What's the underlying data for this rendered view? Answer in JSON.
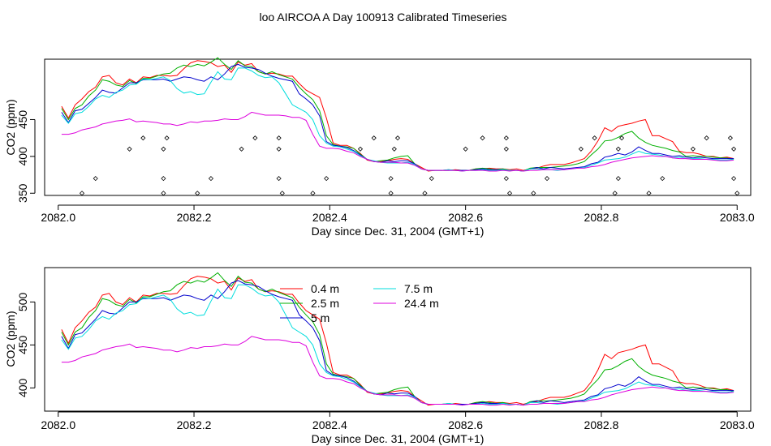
{
  "page_title": "loo AIRCOA A  Day 100913  Calibrated Timeseries",
  "colors": {
    "0.4 m": "#ff0000",
    "2.5 m": "#00b000",
    "5 m": "#0000cc",
    "7.5 m": "#00dddd",
    "24.4 m": "#dd00dd"
  },
  "chart_data": [
    {
      "type": "line",
      "title": "",
      "xlabel": "Day since Dec. 31, 2004 (GMT+1)",
      "ylabel": "CO2 (ppm)",
      "xlim": [
        2081.98,
        2083.02
      ],
      "ylim": [
        347,
        532
      ],
      "xticks": [
        "2082.0",
        "2082.2",
        "2082.4",
        "2082.6",
        "2082.8",
        "2083.0"
      ],
      "yticks": [
        "350",
        "400",
        "450"
      ],
      "grid": false,
      "legend": "none",
      "x": [
        2082.005,
        2082.015,
        2082.025,
        2082.035,
        2082.045,
        2082.055,
        2082.065,
        2082.075,
        2082.085,
        2082.095,
        2082.105,
        2082.115,
        2082.125,
        2082.135,
        2082.145,
        2082.155,
        2082.165,
        2082.175,
        2082.185,
        2082.195,
        2082.205,
        2082.215,
        2082.225,
        2082.235,
        2082.245,
        2082.255,
        2082.265,
        2082.275,
        2082.285,
        2082.295,
        2082.305,
        2082.315,
        2082.325,
        2082.335,
        2082.345,
        2082.355,
        2082.365,
        2082.375,
        2082.385,
        2082.395,
        2082.405,
        2082.415,
        2082.425,
        2082.435,
        2082.445,
        2082.455,
        2082.465,
        2082.475,
        2082.485,
        2082.495,
        2082.505,
        2082.515,
        2082.525,
        2082.535,
        2082.545,
        2082.555,
        2082.565,
        2082.575,
        2082.585,
        2082.595,
        2082.605,
        2082.615,
        2082.625,
        2082.635,
        2082.645,
        2082.655,
        2082.665,
        2082.675,
        2082.685,
        2082.695,
        2082.705,
        2082.715,
        2082.725,
        2082.735,
        2082.745,
        2082.755,
        2082.765,
        2082.775,
        2082.785,
        2082.795,
        2082.805,
        2082.815,
        2082.825,
        2082.835,
        2082.845,
        2082.855,
        2082.865,
        2082.875,
        2082.885,
        2082.895,
        2082.905,
        2082.915,
        2082.925,
        2082.935,
        2082.945,
        2082.955,
        2082.965,
        2082.975,
        2082.985,
        2082.995
      ],
      "series": [
        {
          "name": "0.4 m",
          "values": [
            468,
            452,
            470,
            478,
            488,
            494,
            508,
            510,
            500,
            497,
            505,
            500,
            508,
            507,
            510,
            510,
            509,
            510,
            519,
            527,
            530,
            529,
            527,
            522,
            524,
            514,
            528,
            524,
            526,
            515,
            512,
            513,
            512,
            509,
            509,
            499,
            490,
            485,
            480,
            452,
            418,
            415,
            415,
            411,
            404,
            395,
            393,
            393,
            394,
            396,
            397,
            396,
            390,
            385,
            380,
            381,
            381,
            381,
            382,
            381,
            381,
            383,
            383,
            384,
            383,
            383,
            382,
            383,
            381,
            383,
            384,
            387,
            389,
            389,
            389,
            391,
            394,
            397,
            407,
            421,
            439,
            434,
            441,
            443,
            445,
            448,
            450,
            428,
            428,
            424,
            420,
            407,
            405,
            405,
            403,
            400,
            400,
            398,
            399,
            397
          ]
        },
        {
          "name": "2.5 m",
          "values": [
            465,
            450,
            465,
            470,
            482,
            490,
            504,
            502,
            497,
            495,
            503,
            499,
            506,
            506,
            509,
            512,
            513,
            520,
            524,
            522,
            525,
            523,
            528,
            534,
            525,
            518,
            530,
            523,
            522,
            515,
            512,
            515,
            511,
            508,
            505,
            494,
            485,
            477,
            462,
            428,
            416,
            414,
            413,
            411,
            403,
            396,
            393,
            394,
            395,
            398,
            400,
            401,
            390,
            383,
            381,
            381,
            381,
            382,
            381,
            381,
            381,
            383,
            384,
            383,
            382,
            383,
            381,
            381,
            380,
            384,
            385,
            385,
            385,
            386,
            387,
            388,
            390,
            393,
            402,
            410,
            421,
            422,
            426,
            431,
            434,
            425,
            419,
            415,
            413,
            411,
            408,
            406,
            400,
            401,
            400,
            400,
            399,
            398,
            398,
            396
          ]
        },
        {
          "name": "5 m",
          "values": [
            460,
            446,
            462,
            464,
            472,
            480,
            490,
            487,
            486,
            493,
            500,
            500,
            504,
            504,
            504,
            505,
            502,
            505,
            508,
            507,
            504,
            502,
            508,
            504,
            512,
            522,
            525,
            521,
            520,
            518,
            513,
            509,
            506,
            504,
            502,
            485,
            478,
            470,
            455,
            420,
            415,
            414,
            412,
            408,
            402,
            396,
            393,
            392,
            394,
            393,
            394,
            394,
            390,
            383,
            381,
            381,
            381,
            381,
            381,
            381,
            381,
            382,
            383,
            382,
            382,
            382,
            381,
            381,
            380,
            383,
            385,
            383,
            385,
            384,
            383,
            384,
            385,
            386,
            390,
            392,
            399,
            401,
            404,
            402,
            406,
            413,
            408,
            404,
            404,
            402,
            400,
            401,
            399,
            398,
            399,
            398,
            397,
            397,
            397,
            397
          ]
        },
        {
          "name": "7.5 m",
          "values": [
            456,
            445,
            458,
            460,
            468,
            478,
            483,
            480,
            487,
            490,
            497,
            498,
            505,
            504,
            506,
            508,
            503,
            492,
            486,
            488,
            484,
            485,
            501,
            515,
            505,
            504,
            520,
            520,
            516,
            510,
            507,
            508,
            500,
            485,
            470,
            465,
            460,
            450,
            428,
            418,
            414,
            413,
            410,
            407,
            401,
            396,
            394,
            392,
            391,
            391,
            391,
            392,
            389,
            383,
            381,
            381,
            381,
            382,
            381,
            380,
            381,
            381,
            382,
            381,
            381,
            382,
            381,
            381,
            380,
            383,
            383,
            382,
            382,
            381,
            382,
            383,
            384,
            385,
            388,
            391,
            395,
            396,
            397,
            399,
            403,
            407,
            404,
            403,
            402,
            400,
            398,
            399,
            397,
            397,
            397,
            396,
            396,
            395,
            395,
            396
          ]
        },
        {
          "name": "24.4 m",
          "values": [
            430,
            430,
            432,
            436,
            438,
            440,
            444,
            446,
            448,
            449,
            451,
            447,
            448,
            447,
            446,
            444,
            444,
            442,
            444,
            447,
            446,
            448,
            448,
            449,
            451,
            450,
            450,
            454,
            460,
            458,
            456,
            456,
            456,
            455,
            453,
            453,
            449,
            430,
            414,
            411,
            411,
            410,
            407,
            405,
            400,
            396,
            393,
            392,
            392,
            392,
            391,
            391,
            388,
            383,
            381,
            381,
            381,
            381,
            381,
            380,
            381,
            381,
            381,
            380,
            380,
            381,
            380,
            381,
            380,
            381,
            381,
            382,
            382,
            382,
            382,
            383,
            384,
            384,
            386,
            387,
            389,
            392,
            394,
            396,
            398,
            399,
            400,
            401,
            400,
            400,
            398,
            397,
            397,
            396,
            396,
            396,
            395,
            394,
            394,
            395
          ]
        }
      ],
      "markers": {
        "shape": "open-diamond",
        "points": [
          [
            2082.035,
            350
          ],
          [
            2082.055,
            370
          ],
          [
            2082.105,
            410
          ],
          [
            2082.125,
            425
          ],
          [
            2082.155,
            350
          ],
          [
            2082.155,
            370
          ],
          [
            2082.155,
            410
          ],
          [
            2082.16,
            425
          ],
          [
            2082.205,
            350
          ],
          [
            2082.225,
            370
          ],
          [
            2082.27,
            410
          ],
          [
            2082.29,
            425
          ],
          [
            2082.325,
            370
          ],
          [
            2082.325,
            410
          ],
          [
            2082.325,
            425
          ],
          [
            2082.33,
            350
          ],
          [
            2082.375,
            350
          ],
          [
            2082.395,
            370
          ],
          [
            2082.445,
            410
          ],
          [
            2082.465,
            425
          ],
          [
            2082.49,
            350
          ],
          [
            2082.49,
            370
          ],
          [
            2082.495,
            410
          ],
          [
            2082.5,
            425
          ],
          [
            2082.54,
            350
          ],
          [
            2082.55,
            370
          ],
          [
            2082.6,
            410
          ],
          [
            2082.625,
            425
          ],
          [
            2082.66,
            370
          ],
          [
            2082.66,
            410
          ],
          [
            2082.66,
            425
          ],
          [
            2082.665,
            350
          ],
          [
            2082.7,
            350
          ],
          [
            2082.72,
            370
          ],
          [
            2082.77,
            410
          ],
          [
            2082.79,
            425
          ],
          [
            2082.82,
            350
          ],
          [
            2082.825,
            370
          ],
          [
            2082.825,
            410
          ],
          [
            2082.83,
            425
          ],
          [
            2082.87,
            350
          ],
          [
            2082.89,
            370
          ],
          [
            2082.935,
            410
          ],
          [
            2082.955,
            425
          ],
          [
            2082.99,
            425
          ],
          [
            2082.995,
            410
          ],
          [
            2082.995,
            370
          ],
          [
            2083.0,
            350
          ]
        ]
      }
    },
    {
      "type": "line",
      "title": "",
      "xlabel": "Day since Dec. 31, 2004 (GMT+1)",
      "ylabel": "CO2 (ppm)",
      "xlim": [
        2081.98,
        2083.02
      ],
      "ylim": [
        373,
        540
      ],
      "xticks": [
        "2082.0",
        "2082.2",
        "2082.4",
        "2082.6",
        "2082.8",
        "2083.0"
      ],
      "yticks": [
        "400",
        "450",
        "500"
      ],
      "grid": false,
      "legend": "top-center inside, two columns",
      "legend_entries": [
        "0.4 m",
        "2.5 m",
        "5 m",
        "7.5 m",
        "24.4 m"
      ],
      "use_series_from_chart": 0
    }
  ]
}
